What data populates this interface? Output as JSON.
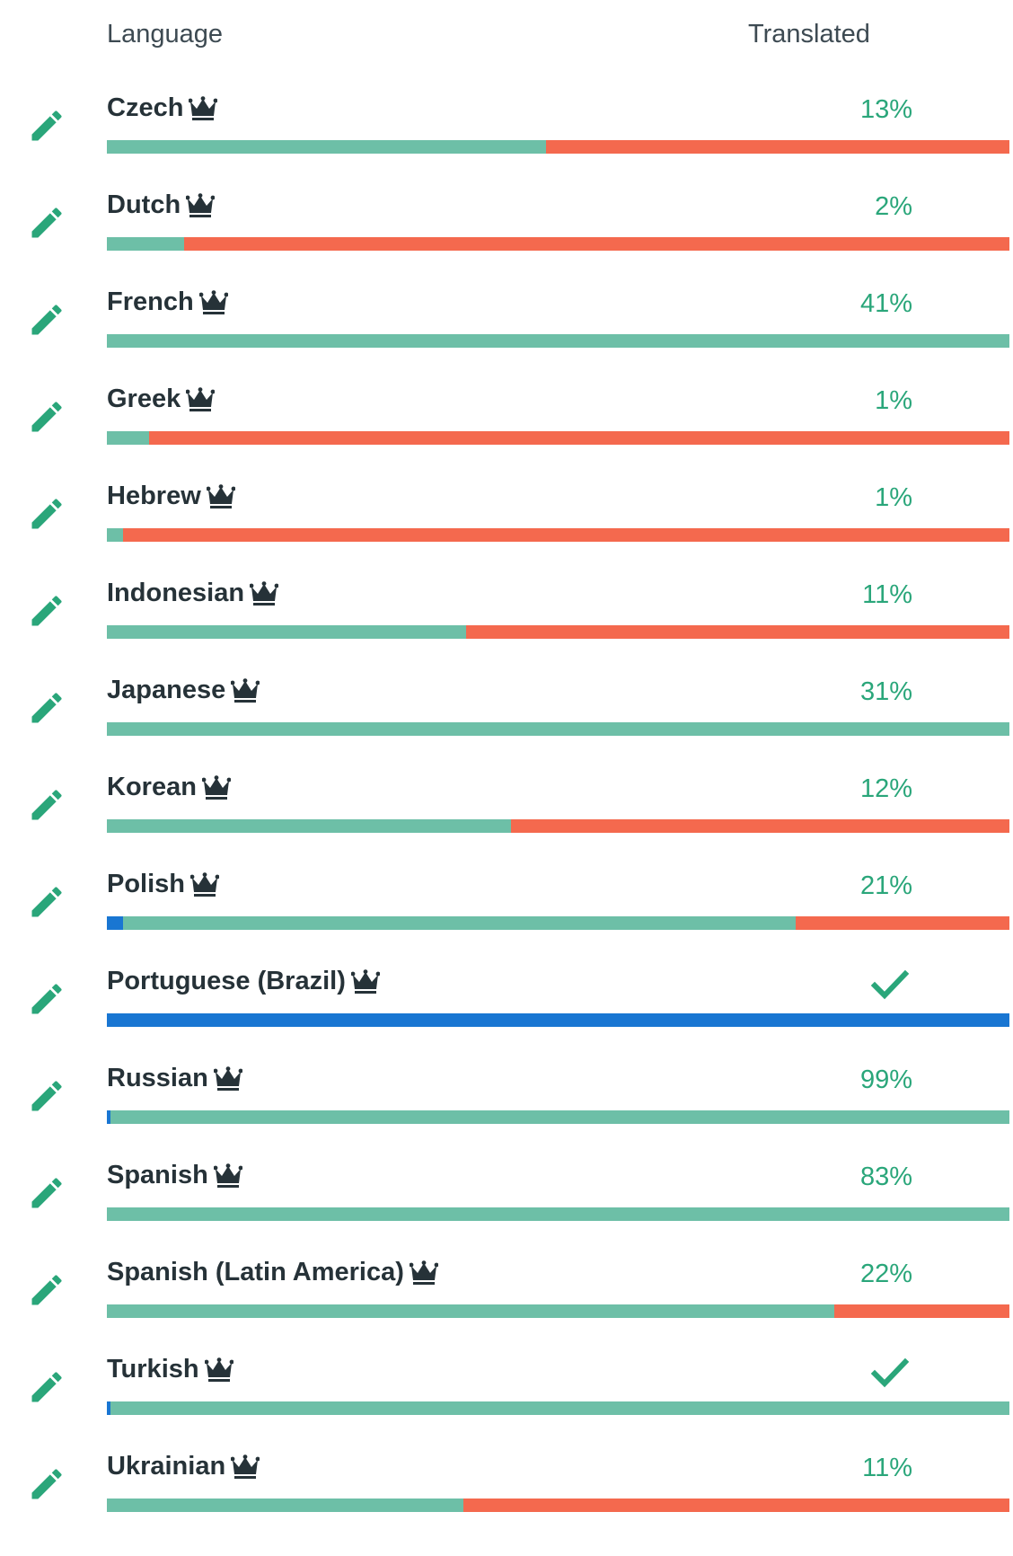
{
  "header": {
    "language": "Language",
    "translated": "Translated"
  },
  "colors": {
    "approved": "#1976d2",
    "translated": "#6dbfa7",
    "untranslated": "#f4694e",
    "pencil": "#2aa67a",
    "crown": "#263238"
  },
  "languages": [
    {
      "name": "Czech",
      "pct": "13%",
      "complete": false,
      "bar": {
        "approved": 0,
        "translated": 0.487,
        "untranslated": 0.513
      }
    },
    {
      "name": "Dutch",
      "pct": "2%",
      "complete": false,
      "bar": {
        "approved": 0,
        "translated": 0.086,
        "untranslated": 0.914
      }
    },
    {
      "name": "French",
      "pct": "41%",
      "complete": false,
      "bar": {
        "approved": 0,
        "translated": 1.0,
        "untranslated": 0
      }
    },
    {
      "name": "Greek",
      "pct": "1%",
      "complete": false,
      "bar": {
        "approved": 0,
        "translated": 0.047,
        "untranslated": 0.953
      }
    },
    {
      "name": "Hebrew",
      "pct": "1%",
      "complete": false,
      "bar": {
        "approved": 0,
        "translated": 0.018,
        "untranslated": 0.982
      }
    },
    {
      "name": "Indonesian",
      "pct": "11%",
      "complete": false,
      "bar": {
        "approved": 0,
        "translated": 0.398,
        "untranslated": 0.602
      }
    },
    {
      "name": "Japanese",
      "pct": "31%",
      "complete": false,
      "bar": {
        "approved": 0,
        "translated": 1.0,
        "untranslated": 0
      }
    },
    {
      "name": "Korean",
      "pct": "12%",
      "complete": false,
      "bar": {
        "approved": 0,
        "translated": 0.448,
        "untranslated": 0.552
      }
    },
    {
      "name": "Polish",
      "pct": "21%",
      "complete": false,
      "bar": {
        "approved": 0.018,
        "translated": 0.745,
        "untranslated": 0.237
      }
    },
    {
      "name": "Portuguese (Brazil)",
      "pct": "",
      "complete": true,
      "bar": {
        "approved": 1.0,
        "translated": 0,
        "untranslated": 0
      }
    },
    {
      "name": "Russian",
      "pct": "99%",
      "complete": false,
      "bar": {
        "approved": 0.004,
        "translated": 0.996,
        "untranslated": 0
      }
    },
    {
      "name": "Spanish",
      "pct": "83%",
      "complete": false,
      "bar": {
        "approved": 0,
        "translated": 1.0,
        "untranslated": 0
      }
    },
    {
      "name": "Spanish (Latin America)",
      "pct": "22%",
      "complete": false,
      "bar": {
        "approved": 0,
        "translated": 0.806,
        "untranslated": 0.194
      }
    },
    {
      "name": "Turkish",
      "pct": "",
      "complete": true,
      "bar": {
        "approved": 0.004,
        "translated": 0.996,
        "untranslated": 0
      }
    },
    {
      "name": "Ukrainian",
      "pct": "11%",
      "complete": false,
      "bar": {
        "approved": 0,
        "translated": 0.395,
        "untranslated": 0.605
      }
    }
  ]
}
